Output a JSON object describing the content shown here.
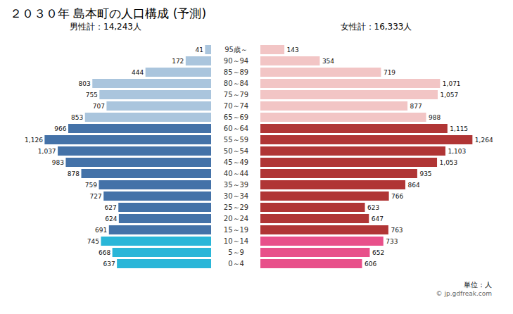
{
  "chart_data": {
    "type": "bar",
    "orientation": "horizontal",
    "title": "２０３０年 島本町の人口構成 (予測)",
    "annotations": [
      "単位：人",
      "© jp.gdfreak.com"
    ],
    "categories": [
      "95歳～",
      "90～94",
      "85～89",
      "80～84",
      "75～79",
      "70～74",
      "65～69",
      "60～64",
      "55～59",
      "50～54",
      "45～49",
      "40～44",
      "35～39",
      "30～34",
      "25～29",
      "20～24",
      "15～19",
      "10～14",
      "5～9",
      "0～4"
    ],
    "series": [
      {
        "name": "男性計：14,243人",
        "values": [
          41,
          172,
          444,
          803,
          755,
          707,
          853,
          966,
          1126,
          1037,
          983,
          878,
          759,
          727,
          627,
          624,
          691,
          745,
          668,
          637
        ],
        "value_labels": [
          "41",
          "172",
          "444",
          "803",
          "755",
          "707",
          "853",
          "966",
          "1,126",
          "1,037",
          "983",
          "878",
          "759",
          "727",
          "627",
          "624",
          "691",
          "745",
          "668",
          "637"
        ],
        "colors": [
          "#aac5dd",
          "#aac5dd",
          "#aac5dd",
          "#aac5dd",
          "#aac5dd",
          "#aac5dd",
          "#aac5dd",
          "#4472a8",
          "#4472a8",
          "#4472a8",
          "#4472a8",
          "#4472a8",
          "#4472a8",
          "#4472a8",
          "#4472a8",
          "#4472a8",
          "#4472a8",
          "#29b6d8",
          "#29b6d8",
          "#29b6d8"
        ]
      },
      {
        "name": "女性計：16,333人",
        "values": [
          143,
          354,
          719,
          1071,
          1057,
          877,
          988,
          1115,
          1264,
          1103,
          1053,
          935,
          864,
          766,
          623,
          647,
          763,
          733,
          652,
          606
        ],
        "value_labels": [
          "143",
          "354",
          "719",
          "1,071",
          "1,057",
          "877",
          "988",
          "1,115",
          "1,264",
          "1,103",
          "1,053",
          "935",
          "864",
          "766",
          "623",
          "647",
          "763",
          "733",
          "652",
          "606"
        ],
        "colors": [
          "#f2c5c5",
          "#f2c5c5",
          "#f2c5c5",
          "#f2c5c5",
          "#f2c5c5",
          "#f2c5c5",
          "#f2c5c5",
          "#b03535",
          "#b03535",
          "#b03535",
          "#b03535",
          "#b03535",
          "#b03535",
          "#b03535",
          "#b03535",
          "#b03535",
          "#b03535",
          "#e8508a",
          "#e8508a",
          "#e8508a"
        ]
      }
    ],
    "xlim": [
      0,
      1380
    ],
    "data_labels": true,
    "tick_labels": "y"
  }
}
